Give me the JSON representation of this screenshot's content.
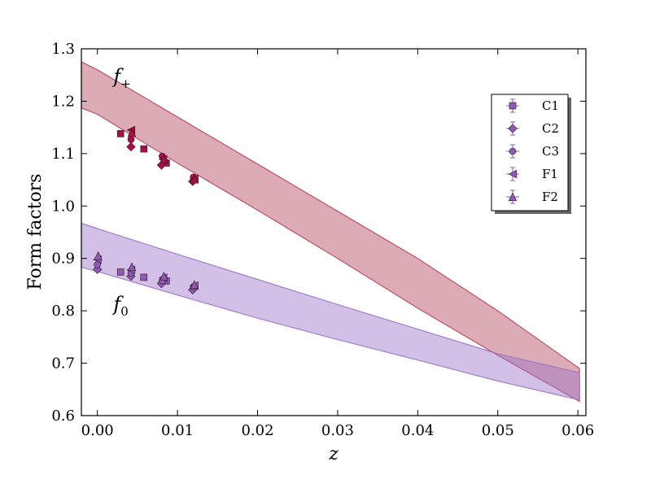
{
  "chart_data": {
    "type": "scatter",
    "xlabel": "z",
    "ylabel": "Form factors",
    "xlim": [
      -0.002,
      0.061
    ],
    "ylim": [
      0.6,
      1.3
    ],
    "xticks": [
      0.0,
      0.01,
      0.02,
      0.03,
      0.04,
      0.05,
      0.06
    ],
    "xtick_labels": [
      "0.00",
      "0.01",
      "0.02",
      "0.03",
      "0.04",
      "0.05",
      "0.06"
    ],
    "yticks": [
      0.6,
      0.7,
      0.8,
      0.9,
      1.0,
      1.1,
      1.2,
      1.3
    ],
    "ytick_labels": [
      "0.6",
      "0.7",
      "0.8",
      "0.9",
      "1.0",
      "1.1",
      "1.2",
      "1.3"
    ],
    "annotations": [
      {
        "name": "fplus",
        "base": "f",
        "sub": "+",
        "x": 0.002,
        "y": 1.235
      },
      {
        "name": "fzero",
        "base": "f",
        "sub": "0",
        "x": 0.002,
        "y": 0.8
      }
    ],
    "bands": [
      {
        "name": "f+",
        "color": "#b2455e",
        "opacity": 0.45,
        "x": [
          -0.002,
          0.0,
          0.01,
          0.02,
          0.03,
          0.04,
          0.05,
          0.0602
        ],
        "upper": [
          1.275,
          1.26,
          1.17,
          1.08,
          0.99,
          0.9,
          0.8,
          0.69
        ],
        "lower": [
          1.187,
          1.175,
          1.082,
          0.992,
          0.9,
          0.805,
          0.715,
          0.627
        ]
      },
      {
        "name": "f0",
        "color": "#9c74c8",
        "opacity": 0.45,
        "x": [
          -0.002,
          0.0,
          0.01,
          0.02,
          0.03,
          0.04,
          0.05,
          0.0602
        ],
        "upper": [
          0.967,
          0.957,
          0.908,
          0.86,
          0.812,
          0.765,
          0.718,
          0.682
        ],
        "lower": [
          0.883,
          0.875,
          0.83,
          0.786,
          0.745,
          0.706,
          0.666,
          0.63
        ]
      }
    ],
    "series": [
      {
        "name": "C1",
        "marker": "square",
        "points_plus": [
          [
            0.0029,
            1.138
          ],
          [
            0.0058,
            1.109
          ],
          [
            0.0086,
            1.082
          ]
        ],
        "points_zero": [
          [
            0.0029,
            0.874
          ],
          [
            0.0058,
            0.864
          ],
          [
            0.0086,
            0.857
          ]
        ]
      },
      {
        "name": "C2",
        "marker": "diamond",
        "points_plus": [
          [
            0.0042,
            1.113
          ],
          [
            0.008,
            1.078
          ],
          [
            0.0119,
            1.047
          ]
        ],
        "points_zero": [
          [
            0.0,
            0.879
          ],
          [
            0.0042,
            0.866
          ],
          [
            0.008,
            0.852
          ],
          [
            0.0119,
            0.84
          ]
        ]
      },
      {
        "name": "C3",
        "marker": "circle",
        "points_plus": [
          [
            0.0042,
            1.127
          ],
          [
            0.0081,
            1.095
          ],
          [
            0.012,
            1.055
          ]
        ],
        "points_zero": [
          [
            0.0,
            0.888
          ],
          [
            0.0042,
            0.872
          ],
          [
            0.0081,
            0.857
          ],
          [
            0.012,
            0.846
          ]
        ]
      },
      {
        "name": "F1",
        "marker": "triangle-left",
        "points_plus": [
          [
            0.0042,
            1.145
          ],
          [
            0.0082,
            1.089
          ],
          [
            0.0121,
            1.052
          ]
        ],
        "points_zero": [
          [
            0.0,
            0.898
          ],
          [
            0.0042,
            0.878
          ],
          [
            0.0082,
            0.863
          ],
          [
            0.0121,
            0.848
          ]
        ]
      },
      {
        "name": "F2",
        "marker": "triangle-up",
        "points_plus": [
          [
            0.0043,
            1.14
          ],
          [
            0.0083,
            1.09
          ],
          [
            0.0121,
            1.051
          ]
        ],
        "points_zero": [
          [
            0.0001,
            0.905
          ],
          [
            0.0043,
            0.884
          ],
          [
            0.0083,
            0.866
          ],
          [
            0.0121,
            0.85
          ]
        ]
      }
    ],
    "marker_colors": {
      "fplus": "#a31240",
      "fzero": "#8b5cb0"
    },
    "legend": {
      "position": "upper-right",
      "entries": [
        "C1",
        "C2",
        "C3",
        "F1",
        "F2"
      ],
      "color": "#8b5cb0"
    }
  }
}
